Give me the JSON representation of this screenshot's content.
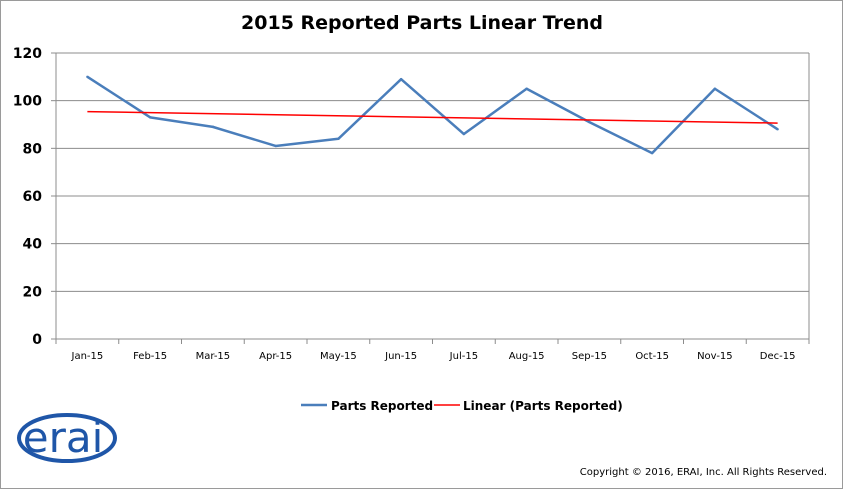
{
  "chart_data": {
    "type": "line",
    "title": "2015 Reported Parts Linear Trend",
    "categories": [
      "Jan-15",
      "Feb-15",
      "Mar-15",
      "Apr-15",
      "May-15",
      "Jun-15",
      "Jul-15",
      "Aug-15",
      "Sep-15",
      "Oct-15",
      "Nov-15",
      "Dec-15"
    ],
    "series": [
      {
        "name": "Parts Reported",
        "values": [
          110,
          93,
          89,
          81,
          84,
          109,
          86,
          105,
          91,
          78,
          105,
          88
        ],
        "color": "#4a7ebb"
      }
    ],
    "trendline": {
      "name": "Linear (Parts Reported)",
      "start": 95.4,
      "end": 90.6,
      "color": "#ff0000"
    },
    "ylim": [
      0,
      120
    ],
    "yticks": [
      0,
      20,
      40,
      60,
      80,
      100,
      120
    ],
    "xlabel": "",
    "ylabel": "",
    "grid": true,
    "legend_position": "bottom"
  },
  "logo": {
    "text": "erai"
  },
  "footer": {
    "copyright": "Copyright © 2016, ERAI, Inc.  All Rights Reserved."
  }
}
